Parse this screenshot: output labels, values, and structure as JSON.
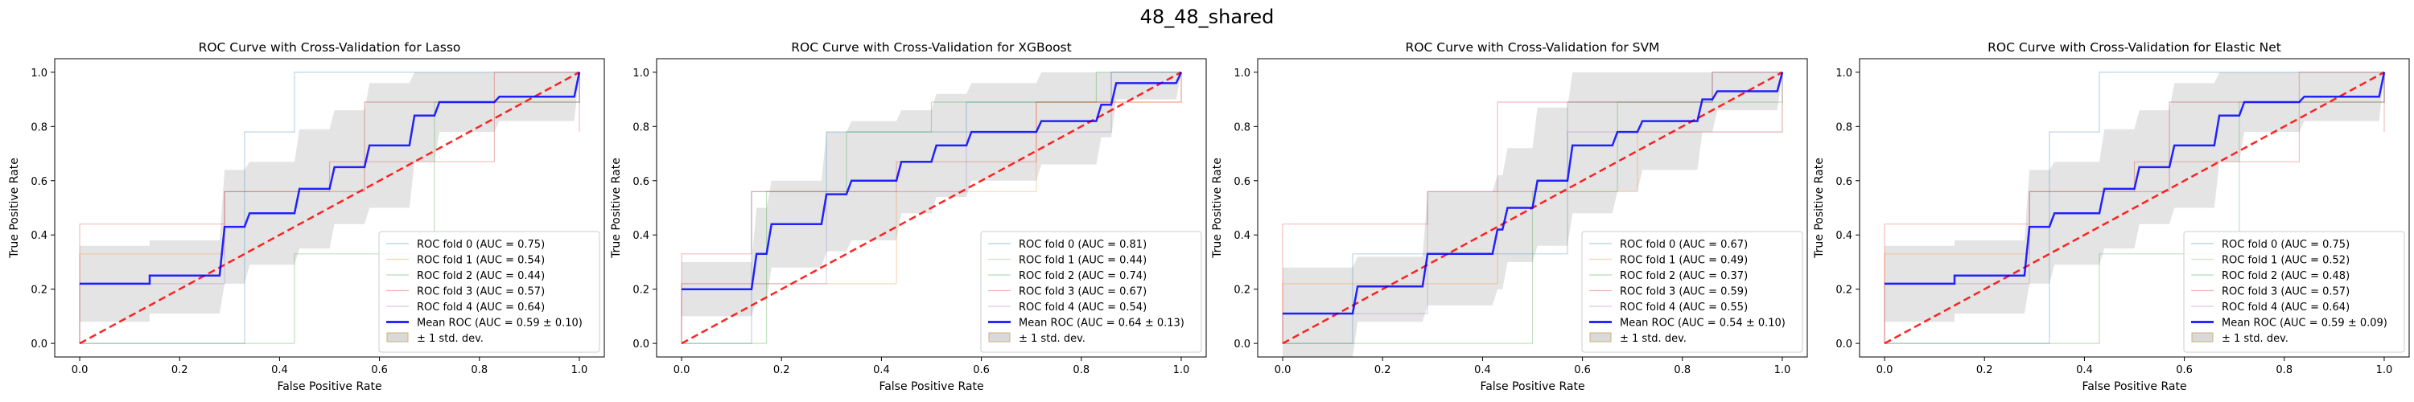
{
  "figure": {
    "suptitle": "48_48_shared"
  },
  "chart_data": [
    {
      "type": "line",
      "title": "ROC Curve with Cross-Validation for Lasso",
      "xlabel": "False Positive Rate",
      "ylabel": "True Positive Rate",
      "xlim": [
        -0.05,
        1.05
      ],
      "ylim": [
        -0.05,
        1.05
      ],
      "xticks": [
        "0.0",
        "0.2",
        "0.4",
        "0.6",
        "0.8",
        "1.0"
      ],
      "yticks": [
        "0.0",
        "0.2",
        "0.4",
        "0.6",
        "0.8",
        "1.0"
      ],
      "grid": false,
      "legend_position": "lower right",
      "folds": [
        {
          "name": "ROC fold 0 (AUC = 0.75)",
          "color": "#1f77b4",
          "x": [
            0,
            0.33,
            0.33,
            0.43,
            0.43,
            1,
            1
          ],
          "y": [
            0,
            0,
            0.78,
            0.78,
            1,
            1,
            1
          ]
        },
        {
          "name": "ROC fold 1 (AUC = 0.54)",
          "color": "#ff7f0e",
          "x": [
            0,
            0,
            0.29,
            0.29,
            0.57,
            0.57,
            1,
            1
          ],
          "y": [
            0,
            0.33,
            0.33,
            0.56,
            0.56,
            0.89,
            0.89,
            1
          ]
        },
        {
          "name": "ROC fold 2 (AUC = 0.44)",
          "color": "#2ca02c",
          "x": [
            0,
            0.43,
            0.43,
            0.71,
            0.71,
            1,
            1
          ],
          "y": [
            0,
            0,
            0.33,
            0.33,
            0.89,
            0.89,
            1
          ]
        },
        {
          "name": "ROC fold 3 (AUC = 0.57)",
          "color": "#d62728",
          "x": [
            0,
            0,
            0.29,
            0.29,
            0.5,
            0.5,
            0.83,
            0.83,
            1,
            1
          ],
          "y": [
            0,
            0.44,
            0.44,
            0.56,
            0.56,
            0.67,
            0.67,
            1,
            1,
            0.78
          ]
        },
        {
          "name": "ROC fold 4 (AUC = 0.64)",
          "color": "#9467bd",
          "x": [
            0,
            0,
            0.29,
            0.29,
            0.57,
            0.57,
            1,
            1
          ],
          "y": [
            0,
            0.22,
            0.22,
            0.56,
            0.56,
            0.89,
            0.89,
            1
          ]
        }
      ],
      "mean": {
        "name": "Mean ROC (AUC = 0.59 ± 0.10)",
        "color": "#0000ff",
        "x": [
          0,
          0.14,
          0.14,
          0.28,
          0.29,
          0.33,
          0.34,
          0.43,
          0.44,
          0.5,
          0.51,
          0.57,
          0.58,
          0.66,
          0.67,
          0.71,
          0.72,
          0.83,
          0.84,
          0.99,
          1
        ],
        "y": [
          0.22,
          0.22,
          0.25,
          0.25,
          0.43,
          0.43,
          0.48,
          0.48,
          0.57,
          0.57,
          0.65,
          0.65,
          0.73,
          0.73,
          0.84,
          0.84,
          0.89,
          0.89,
          0.91,
          0.91,
          1.0
        ]
      },
      "band": {
        "name": "± 1 std. dev.",
        "color": "#bfbfbf",
        "upper": [
          0.36,
          0.36,
          0.38,
          0.38,
          0.64,
          0.64,
          0.67,
          0.67,
          0.79,
          0.79,
          0.86,
          0.86,
          0.96,
          0.96,
          1.0,
          1.0,
          1.0,
          1.0,
          1.0,
          1.0,
          1.0
        ],
        "lower": [
          0.08,
          0.08,
          0.11,
          0.11,
          0.22,
          0.22,
          0.29,
          0.29,
          0.35,
          0.35,
          0.44,
          0.44,
          0.5,
          0.5,
          0.67,
          0.67,
          0.78,
          0.78,
          0.82,
          0.82,
          1.0
        ]
      },
      "chance": {
        "color": "#ff0000",
        "x": [
          0,
          1
        ],
        "y": [
          0,
          1
        ]
      }
    },
    {
      "type": "line",
      "title": "ROC Curve with Cross-Validation for XGBoost",
      "xlabel": "False Positive Rate",
      "ylabel": "True Positive Rate",
      "xlim": [
        -0.05,
        1.05
      ],
      "ylim": [
        -0.05,
        1.05
      ],
      "xticks": [
        "0.0",
        "0.2",
        "0.4",
        "0.6",
        "0.8",
        "1.0"
      ],
      "yticks": [
        "0.0",
        "0.2",
        "0.4",
        "0.6",
        "0.8",
        "1.0"
      ],
      "grid": false,
      "legend_position": "lower right",
      "folds": [
        {
          "name": "ROC fold 0 (AUC = 0.81)",
          "color": "#1f77b4",
          "x": [
            0,
            0.14,
            0.14,
            0.29,
            0.29,
            0.57,
            0.57,
            0.86,
            0.86,
            1
          ],
          "y": [
            0,
            0,
            0.56,
            0.56,
            0.78,
            0.78,
            0.89,
            0.89,
            1,
            1
          ]
        },
        {
          "name": "ROC fold 1 (AUC = 0.44)",
          "color": "#ff7f0e",
          "x": [
            0,
            0,
            0.43,
            0.43,
            0.71,
            0.71,
            1,
            1
          ],
          "y": [
            0,
            0.22,
            0.22,
            0.56,
            0.56,
            0.89,
            0.89,
            1
          ]
        },
        {
          "name": "ROC fold 2 (AUC = 0.74)",
          "color": "#2ca02c",
          "x": [
            0,
            0.17,
            0.17,
            0.33,
            0.33,
            0.5,
            0.5,
            0.83,
            0.83,
            1
          ],
          "y": [
            0,
            0,
            0.56,
            0.56,
            0.78,
            0.78,
            0.89,
            0.89,
            1,
            1
          ]
        },
        {
          "name": "ROC fold 3 (AUC = 0.67)",
          "color": "#d62728",
          "x": [
            0,
            0,
            0.14,
            0.14,
            0.43,
            0.43,
            0.71,
            0.71,
            1,
            1
          ],
          "y": [
            0,
            0.33,
            0.33,
            0.56,
            0.56,
            0.67,
            0.67,
            0.89,
            0.89,
            1
          ]
        },
        {
          "name": "ROC fold 4 (AUC = 0.54)",
          "color": "#9467bd",
          "x": [
            0,
            0,
            0.29,
            0.29,
            0.57,
            0.57,
            0.86,
            0.86,
            1
          ],
          "y": [
            0,
            0.22,
            0.22,
            0.56,
            0.56,
            0.78,
            0.78,
            1,
            1
          ]
        }
      ],
      "mean": {
        "name": "Mean ROC (AUC = 0.64 ± 0.13)",
        "color": "#0000ff",
        "x": [
          0,
          0.14,
          0.15,
          0.17,
          0.18,
          0.28,
          0.29,
          0.33,
          0.34,
          0.43,
          0.44,
          0.5,
          0.51,
          0.57,
          0.58,
          0.71,
          0.72,
          0.83,
          0.84,
          0.86,
          0.87,
          0.99,
          1
        ],
        "y": [
          0.2,
          0.2,
          0.33,
          0.33,
          0.44,
          0.44,
          0.55,
          0.55,
          0.6,
          0.6,
          0.67,
          0.67,
          0.73,
          0.73,
          0.78,
          0.78,
          0.82,
          0.82,
          0.88,
          0.88,
          0.96,
          0.96,
          1.0
        ]
      },
      "band": {
        "name": "± 1 std. dev.",
        "color": "#bfbfbf",
        "upper": [
          0.3,
          0.3,
          0.5,
          0.5,
          0.6,
          0.6,
          0.78,
          0.78,
          0.82,
          0.82,
          0.86,
          0.86,
          0.92,
          0.92,
          0.96,
          0.96,
          1.0,
          1.0,
          1.0,
          1.0,
          1.0,
          1.0,
          1.0
        ],
        "lower": [
          0.1,
          0.1,
          0.16,
          0.16,
          0.28,
          0.28,
          0.34,
          0.34,
          0.38,
          0.38,
          0.48,
          0.48,
          0.54,
          0.54,
          0.6,
          0.6,
          0.66,
          0.66,
          0.76,
          0.76,
          0.9,
          0.9,
          1.0
        ]
      },
      "chance": {
        "color": "#ff0000",
        "x": [
          0,
          1
        ],
        "y": [
          0,
          1
        ]
      }
    },
    {
      "type": "line",
      "title": "ROC Curve with Cross-Validation for SVM",
      "xlabel": "False Positive Rate",
      "ylabel": "True Positive Rate",
      "xlim": [
        -0.05,
        1.05
      ],
      "ylim": [
        -0.05,
        1.05
      ],
      "xticks": [
        "0.0",
        "0.2",
        "0.4",
        "0.6",
        "0.8",
        "1.0"
      ],
      "yticks": [
        "0.0",
        "0.2",
        "0.4",
        "0.6",
        "0.8",
        "1.0"
      ],
      "grid": false,
      "legend_position": "lower right",
      "folds": [
        {
          "name": "ROC fold 0 (AUC = 0.67)",
          "color": "#1f77b4",
          "x": [
            0,
            0.14,
            0.14,
            0.57,
            0.57,
            0.86,
            0.86,
            1
          ],
          "y": [
            0,
            0,
            0.33,
            0.33,
            0.89,
            0.89,
            1,
            1
          ]
        },
        {
          "name": "ROC fold 1 (AUC = 0.49)",
          "color": "#ff7f0e",
          "x": [
            0,
            0,
            0.43,
            0.43,
            0.71,
            0.71,
            1,
            1
          ],
          "y": [
            0,
            0.22,
            0.22,
            0.56,
            0.56,
            0.78,
            0.78,
            1
          ]
        },
        {
          "name": "ROC fold 2 (AUC = 0.37)",
          "color": "#2ca02c",
          "x": [
            0,
            0.5,
            0.5,
            0.67,
            0.67,
            1,
            1
          ],
          "y": [
            0,
            0,
            0.56,
            0.56,
            0.89,
            0.89,
            1
          ]
        },
        {
          "name": "ROC fold 3 (AUC = 0.59)",
          "color": "#d62728",
          "x": [
            0,
            0,
            0.29,
            0.29,
            0.43,
            0.43,
            0.86,
            0.86,
            1,
            1
          ],
          "y": [
            0,
            0.44,
            0.44,
            0.56,
            0.56,
            0.89,
            0.89,
            1,
            1,
            1
          ]
        },
        {
          "name": "ROC fold 4 (AUC = 0.55)",
          "color": "#9467bd",
          "x": [
            0,
            0,
            0.29,
            0.29,
            0.57,
            0.57,
            1,
            1
          ],
          "y": [
            0,
            0.11,
            0.11,
            0.56,
            0.56,
            0.78,
            0.78,
            1
          ]
        }
      ],
      "mean": {
        "name": "Mean ROC (AUC = 0.54 ± 0.10)",
        "color": "#0000ff",
        "x": [
          0,
          0.14,
          0.15,
          0.28,
          0.29,
          0.42,
          0.43,
          0.44,
          0.45,
          0.5,
          0.51,
          0.57,
          0.58,
          0.66,
          0.67,
          0.71,
          0.72,
          0.83,
          0.84,
          0.86,
          0.87,
          0.99,
          1
        ],
        "y": [
          0.11,
          0.11,
          0.21,
          0.21,
          0.33,
          0.33,
          0.42,
          0.42,
          0.5,
          0.5,
          0.6,
          0.6,
          0.73,
          0.73,
          0.78,
          0.78,
          0.82,
          0.82,
          0.9,
          0.9,
          0.93,
          0.93,
          1.0
        ]
      },
      "band": {
        "name": "± 1 std. dev.",
        "color": "#bfbfbf",
        "upper": [
          0.28,
          0.28,
          0.32,
          0.32,
          0.56,
          0.56,
          0.62,
          0.62,
          0.72,
          0.72,
          0.87,
          0.87,
          1.0,
          1.0,
          1.0,
          1.0,
          1.0,
          1.0,
          1.0,
          1.0,
          1.0,
          1.0,
          1.0
        ],
        "lower": [
          -0.05,
          -0.05,
          0.08,
          0.08,
          0.14,
          0.14,
          0.2,
          0.2,
          0.3,
          0.3,
          0.36,
          0.36,
          0.48,
          0.48,
          0.56,
          0.56,
          0.64,
          0.64,
          0.78,
          0.78,
          0.86,
          0.86,
          1.0
        ]
      },
      "chance": {
        "color": "#ff0000",
        "x": [
          0,
          1
        ],
        "y": [
          0,
          1
        ]
      }
    },
    {
      "type": "line",
      "title": "ROC Curve with Cross-Validation for Elastic Net",
      "xlabel": "False Positive Rate",
      "ylabel": "True Positive Rate",
      "xlim": [
        -0.05,
        1.05
      ],
      "ylim": [
        -0.05,
        1.05
      ],
      "xticks": [
        "0.0",
        "0.2",
        "0.4",
        "0.6",
        "0.8",
        "1.0"
      ],
      "yticks": [
        "0.0",
        "0.2",
        "0.4",
        "0.6",
        "0.8",
        "1.0"
      ],
      "grid": false,
      "legend_position": "lower right",
      "folds": [
        {
          "name": "ROC fold 0 (AUC = 0.75)",
          "color": "#1f77b4",
          "x": [
            0,
            0.33,
            0.33,
            0.43,
            0.43,
            1,
            1
          ],
          "y": [
            0,
            0,
            0.78,
            0.78,
            1,
            1,
            1
          ]
        },
        {
          "name": "ROC fold 1 (AUC = 0.52)",
          "color": "#ff7f0e",
          "x": [
            0,
            0,
            0.29,
            0.29,
            0.57,
            0.57,
            1,
            1
          ],
          "y": [
            0,
            0.33,
            0.33,
            0.56,
            0.56,
            0.89,
            0.89,
            1
          ]
        },
        {
          "name": "ROC fold 2 (AUC = 0.48)",
          "color": "#2ca02c",
          "x": [
            0,
            0.43,
            0.43,
            0.71,
            0.71,
            1,
            1
          ],
          "y": [
            0,
            0,
            0.33,
            0.33,
            0.89,
            0.89,
            1
          ]
        },
        {
          "name": "ROC fold 3 (AUC = 0.57)",
          "color": "#d62728",
          "x": [
            0,
            0,
            0.29,
            0.29,
            0.5,
            0.5,
            0.83,
            0.83,
            1,
            1
          ],
          "y": [
            0,
            0.44,
            0.44,
            0.56,
            0.56,
            0.67,
            0.67,
            1,
            1,
            0.78
          ]
        },
        {
          "name": "ROC fold 4 (AUC = 0.64)",
          "color": "#9467bd",
          "x": [
            0,
            0,
            0.29,
            0.29,
            0.57,
            0.57,
            1,
            1
          ],
          "y": [
            0,
            0.22,
            0.22,
            0.56,
            0.56,
            0.89,
            0.89,
            1
          ]
        }
      ],
      "mean": {
        "name": "Mean ROC (AUC = 0.59 ± 0.09)",
        "color": "#0000ff",
        "x": [
          0,
          0.14,
          0.14,
          0.28,
          0.29,
          0.33,
          0.34,
          0.43,
          0.44,
          0.5,
          0.51,
          0.57,
          0.58,
          0.66,
          0.67,
          0.71,
          0.72,
          0.83,
          0.84,
          0.99,
          1
        ],
        "y": [
          0.22,
          0.22,
          0.25,
          0.25,
          0.43,
          0.43,
          0.48,
          0.48,
          0.57,
          0.57,
          0.65,
          0.65,
          0.73,
          0.73,
          0.84,
          0.84,
          0.89,
          0.89,
          0.91,
          0.91,
          1.0
        ]
      },
      "band": {
        "name": "± 1 std. dev.",
        "color": "#bfbfbf",
        "upper": [
          0.36,
          0.36,
          0.38,
          0.38,
          0.64,
          0.64,
          0.67,
          0.67,
          0.79,
          0.79,
          0.86,
          0.86,
          0.96,
          0.96,
          1.0,
          1.0,
          1.0,
          1.0,
          1.0,
          1.0,
          1.0
        ],
        "lower": [
          0.08,
          0.08,
          0.11,
          0.11,
          0.22,
          0.22,
          0.29,
          0.29,
          0.35,
          0.35,
          0.44,
          0.44,
          0.5,
          0.5,
          0.67,
          0.67,
          0.78,
          0.78,
          0.82,
          0.82,
          1.0
        ]
      },
      "chance": {
        "color": "#ff0000",
        "x": [
          0,
          1
        ],
        "y": [
          0,
          1
        ]
      }
    }
  ]
}
